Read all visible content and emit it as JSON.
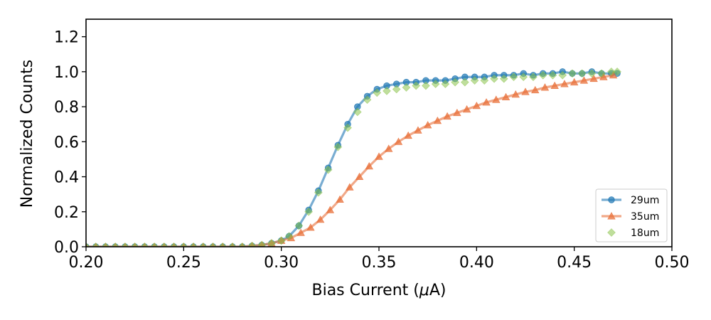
{
  "chart_data": {
    "type": "line",
    "title": "",
    "xlabel": "Bias Current ($\\mu$A)",
    "xlabel_parts": {
      "prefix": "Bias Current (",
      "greek": "μ",
      "suffix": "A)"
    },
    "ylabel": "Normalized Counts",
    "xlim": [
      0.2,
      0.5
    ],
    "ylim": [
      0,
      1.3
    ],
    "x_ticks": [
      0.2,
      0.25,
      0.3,
      0.35,
      0.4,
      0.45,
      0.5
    ],
    "x_tick_labels": [
      "0.20",
      "0.25",
      "0.30",
      "0.35",
      "0.40",
      "0.45",
      "0.50"
    ],
    "y_ticks": [
      0,
      0.2,
      0.4,
      0.6,
      0.8,
      1.0,
      1.2
    ],
    "y_tick_labels": [
      "0.0",
      "0.2",
      "0.4",
      "0.6",
      "0.8",
      "1.0",
      "1.2"
    ],
    "grid": false,
    "legend_position": "bottom-right",
    "series": [
      {
        "name": "29um",
        "color": "#1f77b4",
        "marker": "circle",
        "line": true,
        "x": [
          0.2,
          0.205,
          0.21,
          0.215,
          0.22,
          0.225,
          0.23,
          0.235,
          0.24,
          0.245,
          0.25,
          0.255,
          0.26,
          0.265,
          0.27,
          0.275,
          0.28,
          0.285,
          0.29,
          0.295,
          0.3,
          0.304,
          0.309,
          0.314,
          0.319,
          0.324,
          0.329,
          0.334,
          0.339,
          0.344,
          0.349,
          0.354,
          0.359,
          0.364,
          0.369,
          0.374,
          0.379,
          0.384,
          0.389,
          0.394,
          0.399,
          0.404,
          0.409,
          0.414,
          0.419,
          0.424,
          0.429,
          0.434,
          0.439,
          0.444,
          0.449,
          0.454,
          0.459,
          0.464,
          0.469,
          0.472
        ],
        "y": [
          0,
          0,
          0,
          0,
          0,
          0,
          0,
          0,
          0,
          0,
          0,
          0,
          0,
          0,
          0,
          0,
          0,
          0.005,
          0.01,
          0.02,
          0.035,
          0.06,
          0.12,
          0.21,
          0.32,
          0.45,
          0.58,
          0.7,
          0.8,
          0.86,
          0.9,
          0.92,
          0.93,
          0.94,
          0.94,
          0.95,
          0.95,
          0.95,
          0.96,
          0.97,
          0.97,
          0.97,
          0.98,
          0.98,
          0.98,
          0.99,
          0.98,
          0.99,
          0.99,
          1.0,
          0.99,
          0.99,
          1.0,
          0.99,
          0.99,
          0.99
        ]
      },
      {
        "name": "35um",
        "color": "#e8703a",
        "marker": "triangle",
        "line": true,
        "x": [
          0.2,
          0.205,
          0.21,
          0.215,
          0.22,
          0.225,
          0.23,
          0.235,
          0.24,
          0.245,
          0.25,
          0.255,
          0.26,
          0.265,
          0.27,
          0.275,
          0.28,
          0.285,
          0.29,
          0.295,
          0.3,
          0.305,
          0.31,
          0.315,
          0.32,
          0.325,
          0.33,
          0.335,
          0.34,
          0.345,
          0.35,
          0.355,
          0.36,
          0.365,
          0.37,
          0.375,
          0.38,
          0.385,
          0.39,
          0.395,
          0.4,
          0.405,
          0.41,
          0.415,
          0.42,
          0.425,
          0.43,
          0.435,
          0.44,
          0.445,
          0.45,
          0.455,
          0.46,
          0.465,
          0.47
        ],
        "y": [
          0,
          0,
          0,
          0,
          0,
          0,
          0,
          0,
          0,
          0,
          0,
          0,
          0,
          0,
          0,
          0,
          0,
          0.005,
          0.01,
          0.02,
          0.035,
          0.05,
          0.08,
          0.11,
          0.155,
          0.21,
          0.27,
          0.34,
          0.4,
          0.46,
          0.515,
          0.56,
          0.6,
          0.635,
          0.665,
          0.695,
          0.72,
          0.745,
          0.765,
          0.785,
          0.805,
          0.825,
          0.84,
          0.855,
          0.87,
          0.885,
          0.895,
          0.91,
          0.92,
          0.93,
          0.94,
          0.95,
          0.96,
          0.97,
          0.98
        ]
      },
      {
        "name": "18um",
        "color": "#8bc34a",
        "marker": "diamond",
        "line": false,
        "x": [
          0.2,
          0.205,
          0.21,
          0.215,
          0.22,
          0.225,
          0.23,
          0.235,
          0.24,
          0.245,
          0.25,
          0.255,
          0.26,
          0.265,
          0.27,
          0.275,
          0.28,
          0.285,
          0.29,
          0.295,
          0.3,
          0.304,
          0.309,
          0.314,
          0.319,
          0.324,
          0.329,
          0.334,
          0.339,
          0.344,
          0.349,
          0.354,
          0.359,
          0.364,
          0.369,
          0.374,
          0.379,
          0.384,
          0.389,
          0.394,
          0.399,
          0.404,
          0.409,
          0.414,
          0.419,
          0.424,
          0.429,
          0.434,
          0.439,
          0.444,
          0.449,
          0.454,
          0.459,
          0.464,
          0.469,
          0.472
        ],
        "y": [
          0,
          0,
          0,
          0,
          0,
          0,
          0,
          0,
          0,
          0,
          0,
          0,
          0,
          0,
          0,
          0,
          0,
          0.005,
          0.01,
          0.02,
          0.035,
          0.06,
          0.12,
          0.2,
          0.31,
          0.44,
          0.57,
          0.68,
          0.77,
          0.84,
          0.88,
          0.89,
          0.9,
          0.91,
          0.92,
          0.92,
          0.93,
          0.93,
          0.94,
          0.94,
          0.95,
          0.95,
          0.96,
          0.96,
          0.97,
          0.97,
          0.97,
          0.98,
          0.98,
          0.98,
          0.99,
          0.99,
          0.99,
          0.99,
          1.0,
          1.0
        ]
      }
    ]
  }
}
